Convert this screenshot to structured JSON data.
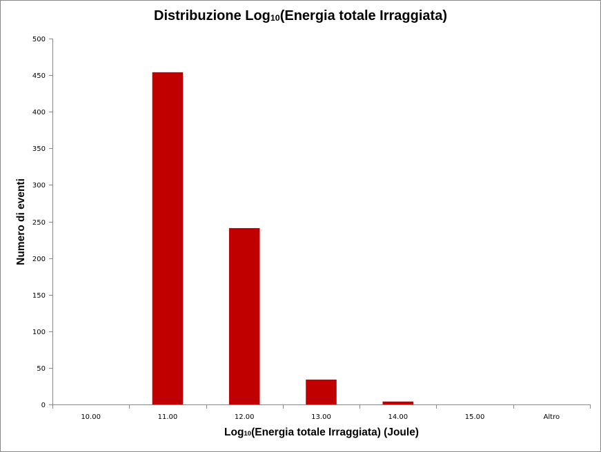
{
  "chart_data": {
    "type": "bar",
    "title": "Distribuzione Log10(Energia totale Irraggiata)",
    "title_parts": {
      "pre": "Distribuzione Log",
      "sub": "10",
      "post": "(Energia totale Irraggiata)"
    },
    "xlabel": "Log10(Energia totale Irraggiata) (Joule)",
    "xlabel_parts": {
      "pre": "Log",
      "sub": "10",
      "post": "(Energia totale Irraggiata) (Joule)"
    },
    "ylabel": "Numero di eventi",
    "categories": [
      "10.00",
      "11.00",
      "12.00",
      "13.00",
      "14.00",
      "15.00",
      "Altro"
    ],
    "values": [
      0,
      454,
      241,
      34,
      4,
      0,
      0
    ],
    "ylim": [
      0,
      500
    ],
    "yticks": [
      0,
      50,
      100,
      150,
      200,
      250,
      300,
      350,
      400,
      450,
      500
    ],
    "grid": false,
    "legend": null,
    "bar_color": "#C00000",
    "axis_color": "#868686"
  }
}
